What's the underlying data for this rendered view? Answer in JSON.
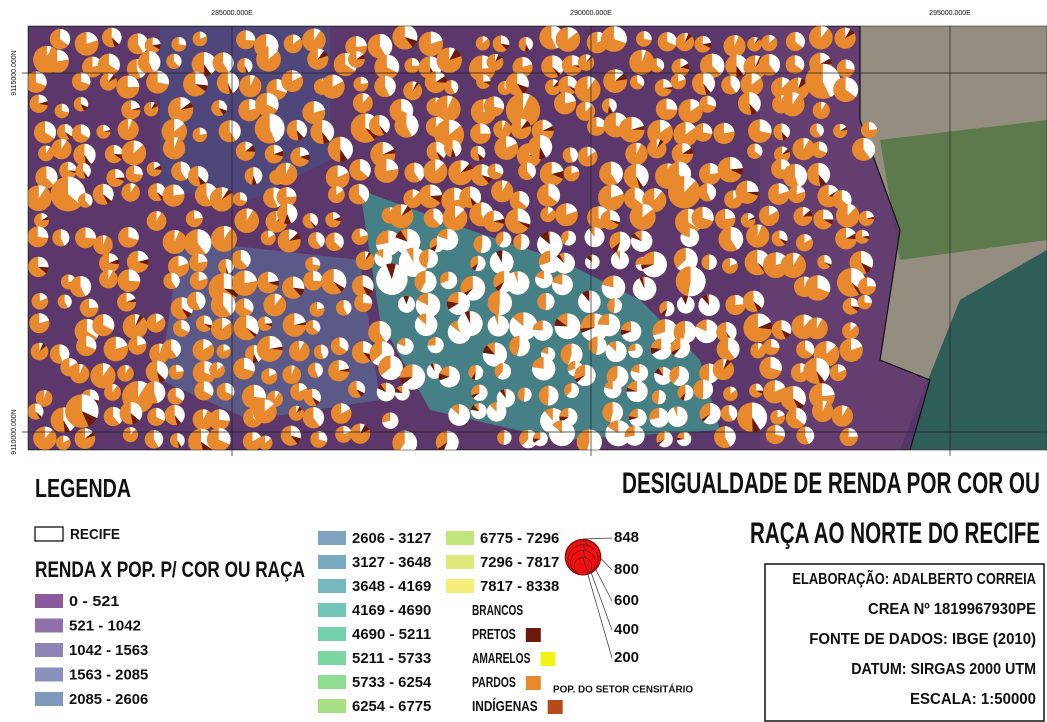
{
  "map": {
    "grid_labels_x": [
      "285000.000E",
      "290000.000E",
      "295000.000E"
    ],
    "grid_labels_y": [
      "9115000.000N",
      "9110000.000N"
    ]
  },
  "legend": {
    "title": "LEGENDA",
    "boundary": "RECIFE",
    "income_title": "RENDA X POP. P/ COR OU RAÇA",
    "income_classes": [
      {
        "label": "0 - 521",
        "color": "#8b5a9c"
      },
      {
        "label": "521 - 1042",
        "color": "#9070a8"
      },
      {
        "label": "1042 - 1563",
        "color": "#8f82b4"
      },
      {
        "label": "1563 - 2085",
        "color": "#8a90bc"
      },
      {
        "label": "2085 - 2606",
        "color": "#7f99bd"
      },
      {
        "label": "2606 - 3127",
        "color": "#80a3c0"
      },
      {
        "label": "3127 - 3648",
        "color": "#7aaac0"
      },
      {
        "label": "3648 - 4169",
        "color": "#78b8bd"
      },
      {
        "label": "4169 - 4690",
        "color": "#74c4b7"
      },
      {
        "label": "4690 - 5211",
        "color": "#74d0ad"
      },
      {
        "label": "5211 - 5733",
        "color": "#7cd6a0"
      },
      {
        "label": "5733 - 6254",
        "color": "#90dc92"
      },
      {
        "label": "6254 - 6775",
        "color": "#a6e084"
      },
      {
        "label": "6775 - 7296",
        "color": "#c2e47c"
      },
      {
        "label": "7296 - 7817",
        "color": "#dfe87a"
      },
      {
        "label": "7817 - 8338",
        "color": "#f5ec7a"
      }
    ],
    "race_classes": [
      {
        "label": "BRANCOS",
        "color": "#ffffff"
      },
      {
        "label": "PRETOS",
        "color": "#6b1a0e"
      },
      {
        "label": "AMARELOS",
        "color": "#f2f21a"
      },
      {
        "label": "PARDOS",
        "color": "#e8892e"
      },
      {
        "label": "INDÍGENAS",
        "color": "#b84a1a"
      }
    ],
    "bubble_sizes": [
      848,
      800,
      600,
      400,
      200
    ],
    "bubble_color": "#ee1111",
    "bubble_caption": "POP. DO SETOR CENSITÁRIO"
  },
  "title_lines": [
    "DESIGUALDADE DE RENDA POR COR OU",
    "RAÇA AO NORTE DO RECIFE"
  ],
  "credits": [
    "ELABORAÇÃO: ADALBERTO CORREIA",
    "CREA Nº 1819967930PE",
    "FONTE DE DADOS: IBGE (2010)",
    "DATUM: SIRGAS 2000 UTM",
    "ESCALA: 1:50000"
  ]
}
